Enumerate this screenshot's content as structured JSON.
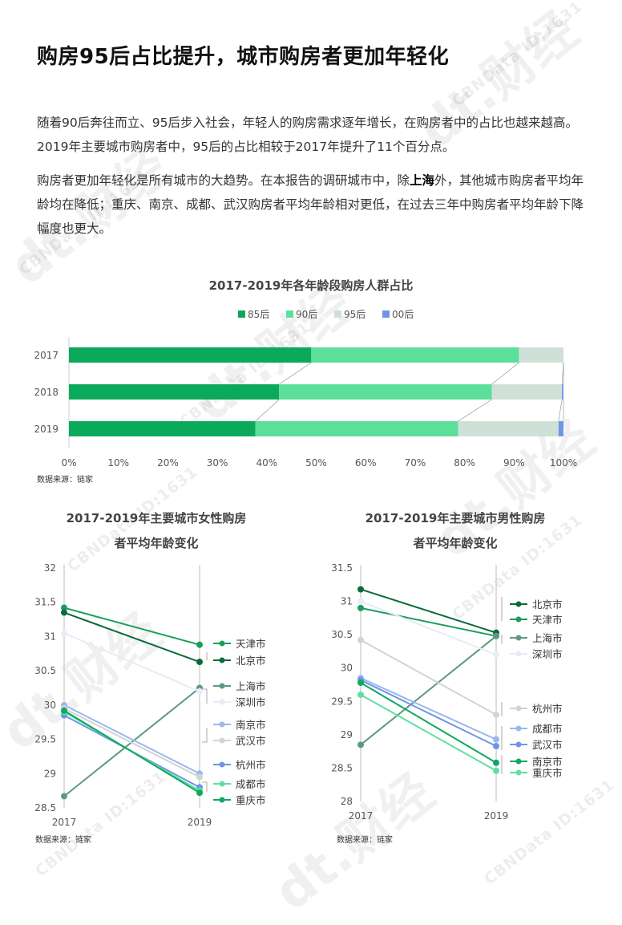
{
  "page": {
    "title": "购房95后占比提升，城市购房者更加年轻化",
    "para1": "随着90后奔往而立、95后步入社会，年轻人的购房需求逐年增长，在购房者中的占比也越来越高。2019年主要城市购房者中，95后的占比相较于2017年提升了11个百分点。",
    "para2_pre": "购房者更加年轻化是所有城市的大趋势。在本报告的调研城市中，除",
    "para2_bold": "上海",
    "para2_post": "外，其他城市购房者平均年龄均在降低；重庆、南京、成都、武汉购房者平均年龄相对更低，在过去三年中购房者平均年龄下降幅度也更大。",
    "watermark_logo": "dt.财经",
    "watermark_id": "CBNData ID:1631"
  },
  "colors": {
    "85后": "#0ba95b",
    "90后": "#5ddf9c",
    "95后": "#cfe1d7",
    "00后": "#6f95e6"
  },
  "chart_data": [
    {
      "type": "bar",
      "orientation": "horizontal",
      "stacked": true,
      "title": "2017-2019年各年龄段购房人群占比",
      "categories": [
        "2017",
        "2018",
        "2019"
      ],
      "series": [
        {
          "name": "85后",
          "color": "#0ba95b",
          "values": [
            49,
            42.5,
            37.7
          ]
        },
        {
          "name": "90后",
          "color": "#5ddf9c",
          "values": [
            42,
            43,
            41
          ]
        },
        {
          "name": "95后",
          "color": "#cfe1d7",
          "values": [
            9,
            14.2,
            20.3
          ]
        },
        {
          "name": "00后",
          "color": "#6f95e6",
          "values": [
            0,
            0.3,
            1.0
          ]
        }
      ],
      "xticks": [
        "0%",
        "10%",
        "20%",
        "30%",
        "40%",
        "50%",
        "60%",
        "70%",
        "80%",
        "90%",
        "100%"
      ],
      "xlim": [
        0,
        100
      ],
      "legend": "top-center",
      "source": "数据来源：链家"
    },
    {
      "type": "line",
      "title_line1": "2017-2019年主要城市女性购房",
      "title_line2": "者平均年龄变化",
      "x": [
        "2017",
        "2019"
      ],
      "ylim": [
        28.5,
        32
      ],
      "yticks": [
        "28.5",
        "29",
        "29.5",
        "30",
        "30.5",
        "31",
        "31.5",
        "32"
      ],
      "series": [
        {
          "name": "天津市",
          "color": "#1a9e5c",
          "values": [
            31.42,
            30.88
          ]
        },
        {
          "name": "北京市",
          "color": "#0b6a3a",
          "values": [
            31.35,
            30.63
          ]
        },
        {
          "name": "上海市",
          "color": "#5e9a7e",
          "values": [
            28.67,
            30.25
          ]
        },
        {
          "name": "深圳市",
          "color": "#e6ecf8",
          "values": [
            31.05,
            30.2
          ]
        },
        {
          "name": "南京市",
          "color": "#9ab8ef",
          "values": [
            30.0,
            29.0
          ]
        },
        {
          "name": "武汉市",
          "color": "#cfd6d2",
          "values": [
            29.95,
            28.95
          ]
        },
        {
          "name": "杭州市",
          "color": "#6f95e6",
          "values": [
            29.85,
            28.8
          ]
        },
        {
          "name": "成都市",
          "color": "#5fe0a0",
          "values": [
            29.9,
            28.75
          ]
        },
        {
          "name": "重庆市",
          "color": "#10a860",
          "values": [
            29.92,
            28.72
          ]
        }
      ],
      "source": "数据来源：链家"
    },
    {
      "type": "line",
      "title_line1": "2017-2019年主要城市男性购房",
      "title_line2": "者平均年龄变化",
      "x": [
        "2017",
        "2019"
      ],
      "ylim": [
        28,
        31.5
      ],
      "yticks": [
        "28",
        "28.5",
        "29",
        "29.5",
        "30",
        "30.5",
        "31",
        "31.5"
      ],
      "series": [
        {
          "name": "北京市",
          "color": "#0b6a3a",
          "values": [
            31.18,
            30.53
          ]
        },
        {
          "name": "天津市",
          "color": "#1a9e5c",
          "values": [
            30.9,
            30.48
          ]
        },
        {
          "name": "上海市",
          "color": "#5e9a7e",
          "values": [
            28.85,
            30.48
          ]
        },
        {
          "name": "深圳市",
          "color": "#e6ecf8",
          "values": [
            31.0,
            30.2
          ]
        },
        {
          "name": "杭州市",
          "color": "#cfd6d2",
          "values": [
            30.42,
            29.3
          ]
        },
        {
          "name": "成都市",
          "color": "#9ab8ef",
          "values": [
            29.85,
            28.93
          ]
        },
        {
          "name": "武汉市",
          "color": "#6f95e6",
          "values": [
            29.82,
            28.83
          ]
        },
        {
          "name": "南京市",
          "color": "#10a860",
          "values": [
            29.78,
            28.58
          ]
        },
        {
          "name": "重庆市",
          "color": "#5fe0a0",
          "values": [
            29.6,
            28.46
          ]
        }
      ],
      "legend_order": [
        "北京市",
        "天津市",
        "上海市",
        "深圳市",
        "杭州市",
        "成都市",
        "武汉市",
        "南京市",
        "重庆市"
      ],
      "source": "数据来源：链家"
    }
  ]
}
